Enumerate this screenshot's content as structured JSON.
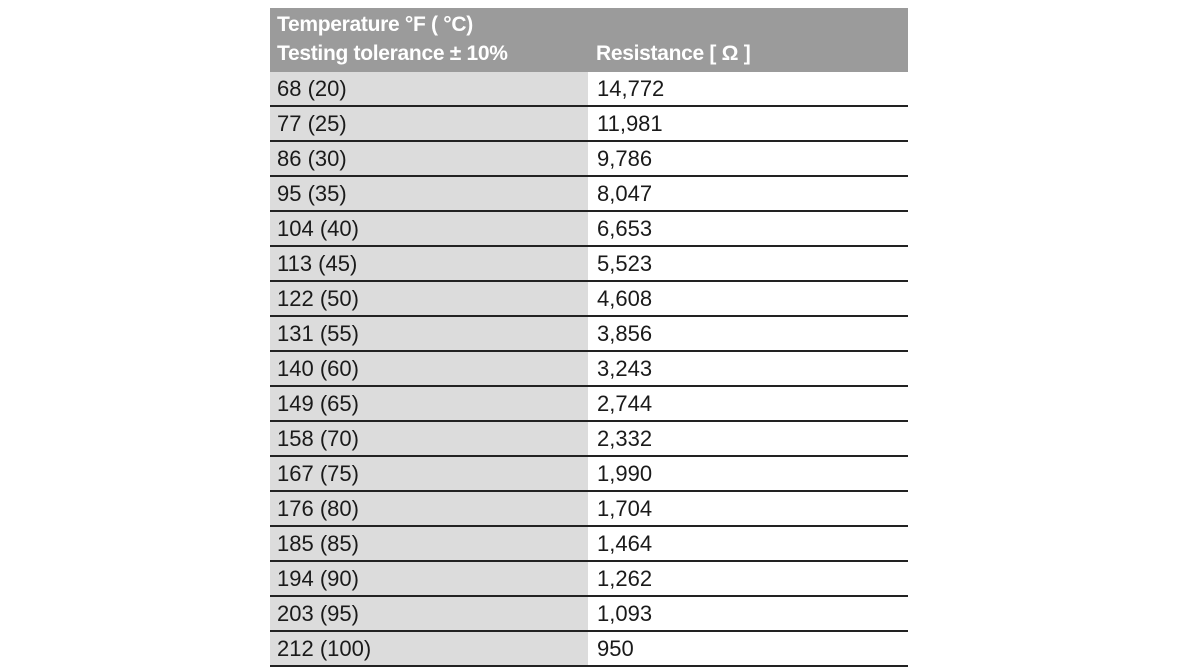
{
  "header": {
    "temp_line1": "Temperature  °F ( °C)",
    "temp_line2": "Testing tolerance ± 10%",
    "resistance": "Resistance [ Ω ]"
  },
  "rows": [
    {
      "temp": "68 (20)",
      "resistance": "14,772"
    },
    {
      "temp": "77 (25)",
      "resistance": "11,981"
    },
    {
      "temp": "86 (30)",
      "resistance": "9,786"
    },
    {
      "temp": "95 (35)",
      "resistance": "8,047"
    },
    {
      "temp": "104 (40)",
      "resistance": "6,653"
    },
    {
      "temp": "113 (45)",
      "resistance": "5,523"
    },
    {
      "temp": "122 (50)",
      "resistance": "4,608"
    },
    {
      "temp": "131 (55)",
      "resistance": "3,856"
    },
    {
      "temp": "140 (60)",
      "resistance": "3,243"
    },
    {
      "temp": "149 (65)",
      "resistance": "2,744"
    },
    {
      "temp": "158 (70)",
      "resistance": "2,332"
    },
    {
      "temp": "167 (75)",
      "resistance": "1,990"
    },
    {
      "temp": "176 (80)",
      "resistance": "1,704"
    },
    {
      "temp": "185 (85)",
      "resistance": "1,464"
    },
    {
      "temp": "194 (90)",
      "resistance": "1,262"
    },
    {
      "temp": "203 (95)",
      "resistance": "1,093"
    },
    {
      "temp": "212 (100)",
      "resistance": "950"
    }
  ],
  "colors": {
    "header_bg": "#9b9b9b",
    "temp_col_bg": "#dcdcdc",
    "rule": "#222222"
  }
}
